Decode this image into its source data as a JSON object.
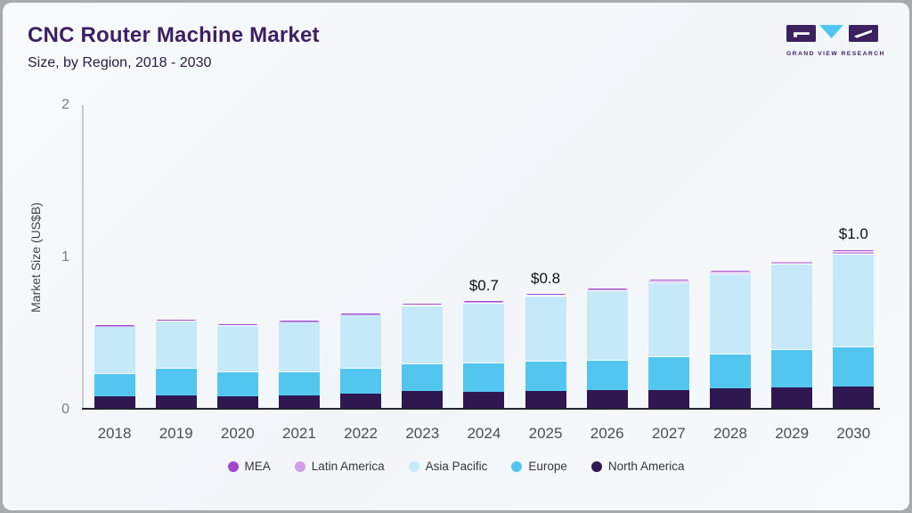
{
  "header": {
    "title": "CNC Router Machine Market",
    "subtitle": "Size, by Region, 2018 - 2030"
  },
  "logo": {
    "text": "GRAND VIEW RESEARCH",
    "brand_purple": "#3b2160",
    "brand_blue": "#50c5f2"
  },
  "chart_data": {
    "type": "bar",
    "stacked": true,
    "title": "CNC Router Machine Market",
    "subtitle": "Size, by Region, 2018 - 2030",
    "ylabel": "Market Size (US$B)",
    "ylim": [
      0,
      2
    ],
    "yticks": [
      "0",
      "1",
      "2"
    ],
    "grid": false,
    "legend_position": "bottom",
    "categories": [
      "2018",
      "2019",
      "2020",
      "2021",
      "2022",
      "2023",
      "2024",
      "2025",
      "2026",
      "2027",
      "2028",
      "2029",
      "2030"
    ],
    "series": [
      {
        "name": "North America",
        "color": "#2f1750",
        "values": [
          0.076,
          0.082,
          0.076,
          0.082,
          0.094,
          0.111,
          0.105,
          0.111,
          0.117,
          0.117,
          0.129,
          0.135,
          0.14
        ]
      },
      {
        "name": "Europe",
        "color": "#53c6f0",
        "values": [
          0.152,
          0.181,
          0.164,
          0.158,
          0.17,
          0.181,
          0.193,
          0.199,
          0.199,
          0.222,
          0.228,
          0.251,
          0.263
        ]
      },
      {
        "name": "Asia Pacific",
        "color": "#c6e9f9",
        "values": [
          0.31,
          0.313,
          0.304,
          0.327,
          0.348,
          0.38,
          0.392,
          0.425,
          0.455,
          0.484,
          0.525,
          0.562,
          0.608
        ]
      },
      {
        "name": "Latin America",
        "color": "#cfa0e8",
        "values": [
          0.003,
          0.003,
          0.003,
          0.003,
          0.004,
          0.008,
          0.009,
          0.01,
          0.011,
          0.012,
          0.013,
          0.015,
          0.016
        ]
      },
      {
        "name": "MEA",
        "color": "#a146d0",
        "values": [
          0.002,
          0.002,
          0.002,
          0.002,
          0.002,
          0.003,
          0.003,
          0.004,
          0.004,
          0.005,
          0.006,
          0.01,
          0.012
        ]
      }
    ],
    "legend_order": [
      "MEA",
      "Latin America",
      "Asia Pacific",
      "Europe",
      "North America"
    ],
    "value_labels": [
      null,
      null,
      null,
      null,
      null,
      null,
      "$0.7",
      "$0.8",
      null,
      null,
      null,
      null,
      "$1.0"
    ]
  }
}
